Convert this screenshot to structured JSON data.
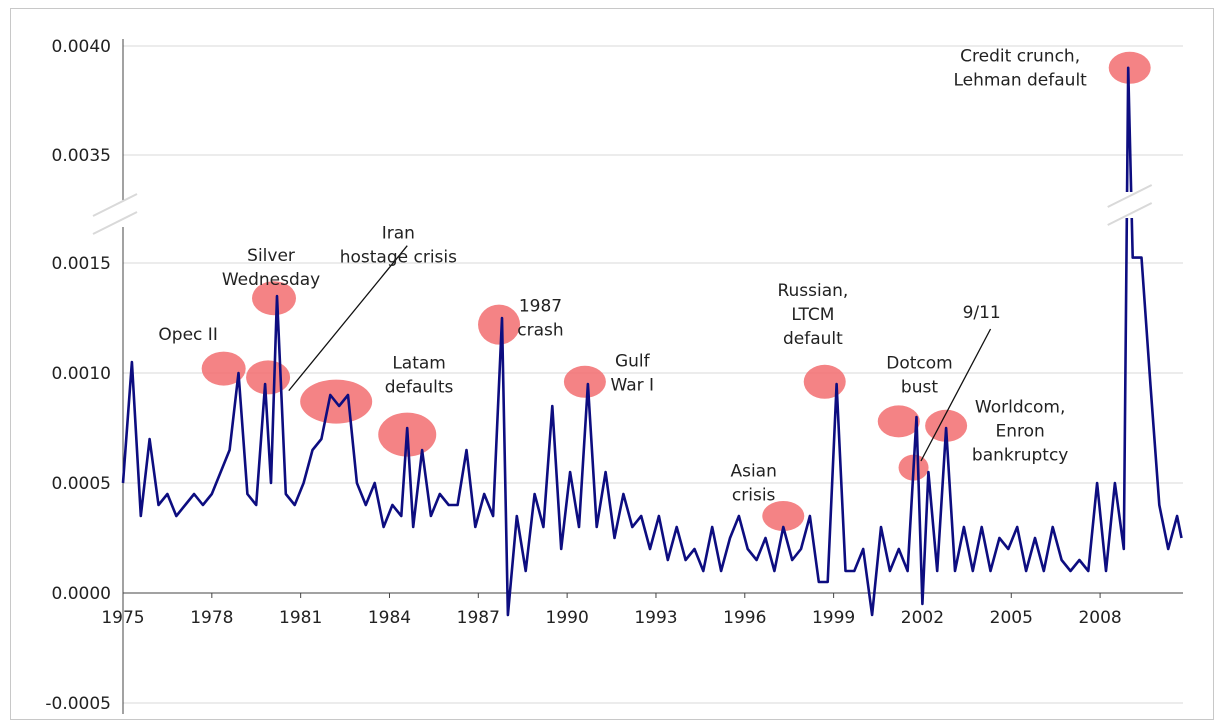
{
  "colors": {
    "line": "#0d0d80",
    "highlight": "#f26d70",
    "grid": "#d9d9d9",
    "axis": "#444444"
  },
  "chart_data": {
    "type": "line",
    "title": "",
    "xlabel": "",
    "ylabel": "",
    "broken_axis": true,
    "axis_break_between": [
      0.0015,
      0.0035
    ],
    "ylim": [
      -0.0005,
      0.004
    ],
    "xlim": [
      1975,
      2010.8
    ],
    "grid": "horizontal",
    "x_ticks": [
      "1975",
      "1978",
      "1981",
      "1984",
      "1987",
      "1990",
      "1993",
      "1996",
      "1999",
      "2002",
      "2005",
      "2008"
    ],
    "y_ticks": [
      "0.0040",
      "0.0035",
      "0.0015",
      "0.0010",
      "0.0005",
      "0.0000",
      "-0.0005"
    ],
    "series": [
      {
        "x": [
          1975.0,
          1975.3,
          1975.6,
          1975.9,
          1976.2,
          1976.5,
          1976.8,
          1977.1,
          1977.4,
          1977.7,
          1978.0,
          1978.3,
          1978.6,
          1978.9,
          1979.2,
          1979.5,
          1979.8,
          1980.0,
          1980.2,
          1980.5,
          1980.8,
          1981.1,
          1981.4,
          1981.7,
          1982.0,
          1982.3,
          1982.6,
          1982.9,
          1983.2,
          1983.5,
          1983.8,
          1984.1,
          1984.4,
          1984.6,
          1984.8,
          1985.1,
          1985.4,
          1985.7,
          1986.0,
          1986.3,
          1986.6,
          1986.9,
          1987.2,
          1987.5,
          1987.8,
          1988.0,
          1988.3,
          1988.6,
          1988.9,
          1989.2,
          1989.5,
          1989.8,
          1990.1,
          1990.4,
          1990.7,
          1991.0,
          1991.3,
          1991.6,
          1991.9,
          1992.2,
          1992.5,
          1992.8,
          1993.1,
          1993.4,
          1993.7,
          1994.0,
          1994.3,
          1994.6,
          1994.9,
          1995.2,
          1995.5,
          1995.8,
          1996.1,
          1996.4,
          1996.7,
          1997.0,
          1997.3,
          1997.6,
          1997.9,
          1998.2,
          1998.5,
          1998.8,
          1999.1,
          1999.4,
          1999.7,
          2000.0,
          2000.3,
          2000.6,
          2000.9,
          2001.2,
          2001.5,
          2001.8,
          2002.0,
          2002.2,
          2002.5,
          2002.8,
          2003.1,
          2003.4,
          2003.7,
          2004.0,
          2004.3,
          2004.6,
          2004.9,
          2005.2,
          2005.5,
          2005.8,
          2006.1,
          2006.4,
          2006.7,
          2007.0,
          2007.3,
          2007.6,
          2007.9,
          2008.2,
          2008.5,
          2008.8,
          2008.95,
          2009.1,
          2009.4,
          2009.7,
          2010.0,
          2010.3,
          2010.6,
          2010.75
        ],
        "y": [
          0.0005,
          0.00105,
          0.00035,
          0.0007,
          0.0004,
          0.00045,
          0.00035,
          0.0004,
          0.00045,
          0.0004,
          0.00045,
          0.00055,
          0.00065,
          0.001,
          0.00045,
          0.0004,
          0.00095,
          0.0005,
          0.00135,
          0.00045,
          0.0004,
          0.0005,
          0.00065,
          0.0007,
          0.0009,
          0.00085,
          0.0009,
          0.0005,
          0.0004,
          0.0005,
          0.0003,
          0.0004,
          0.00035,
          0.00075,
          0.0003,
          0.00065,
          0.00035,
          0.00045,
          0.0004,
          0.0004,
          0.00065,
          0.0003,
          0.00045,
          0.00035,
          0.00125,
          -0.0001,
          0.00035,
          0.0001,
          0.00045,
          0.0003,
          0.00085,
          0.0002,
          0.00055,
          0.0003,
          0.00095,
          0.0003,
          0.00055,
          0.00025,
          0.00045,
          0.0003,
          0.00035,
          0.0002,
          0.00035,
          0.00015,
          0.0003,
          0.00015,
          0.0002,
          0.0001,
          0.0003,
          0.0001,
          0.00025,
          0.00035,
          0.0002,
          0.00015,
          0.00025,
          0.0001,
          0.0003,
          0.00015,
          0.0002,
          0.00035,
          5e-05,
          5e-05,
          0.00095,
          0.0001,
          0.0001,
          0.0002,
          -0.0001,
          0.0003,
          0.0001,
          0.0002,
          0.0001,
          0.0008,
          -5e-05,
          0.00055,
          0.0001,
          0.00075,
          0.0001,
          0.0003,
          0.0001,
          0.0003,
          0.0001,
          0.00025,
          0.0002,
          0.0003,
          0.0001,
          0.00025,
          0.0001,
          0.0003,
          0.00015,
          0.0001,
          0.00015,
          0.0001,
          0.0005,
          0.0001,
          0.0005,
          0.0002,
          0.0039,
          0.0016,
          0.0016,
          0.00095,
          0.0004,
          0.0002,
          0.00035,
          0.00025
        ]
      }
    ],
    "highlights": [
      {
        "x": 1978.4,
        "y": 0.00102,
        "rx": 22,
        "ry": 17
      },
      {
        "x": 1980.1,
        "y": 0.00134,
        "rx": 22,
        "ry": 17
      },
      {
        "x": 1979.9,
        "y": 0.00098,
        "rx": 22,
        "ry": 17
      },
      {
        "x": 1982.2,
        "y": 0.00087,
        "rx": 36,
        "ry": 22
      },
      {
        "x": 1984.6,
        "y": 0.00072,
        "rx": 29,
        "ry": 22
      },
      {
        "x": 1987.7,
        "y": 0.00122,
        "rx": 21,
        "ry": 20
      },
      {
        "x": 1990.6,
        "y": 0.00096,
        "rx": 21,
        "ry": 16
      },
      {
        "x": 1997.3,
        "y": 0.00035,
        "rx": 21,
        "ry": 15
      },
      {
        "x": 1998.7,
        "y": 0.00096,
        "rx": 21,
        "ry": 17
      },
      {
        "x": 2001.2,
        "y": 0.00078,
        "rx": 21,
        "ry": 16
      },
      {
        "x": 2002.8,
        "y": 0.00076,
        "rx": 21,
        "ry": 16
      },
      {
        "x": 2001.7,
        "y": 0.00057,
        "rx": 15,
        "ry": 13
      },
      {
        "x": 2009.0,
        "y": 0.0039,
        "rx": 21,
        "ry": 16
      }
    ],
    "annotations": [
      {
        "lines": [
          "Opec II"
        ],
        "x": 1977.2,
        "y": 0.00115,
        "anchor": "middle"
      },
      {
        "lines": [
          "Silver",
          "Wednesday"
        ],
        "x": 1980.0,
        "y": 0.00154,
        "anchor": "middle"
      },
      {
        "lines": [
          "Iran",
          "hostage crisis"
        ],
        "x": 1984.3,
        "y": 0.00195,
        "anchor": "middle"
      },
      {
        "lines": [
          "Latam",
          "defaults"
        ],
        "x": 1985.0,
        "y": 0.00102,
        "anchor": "middle"
      },
      {
        "lines": [
          "1987",
          "crash"
        ],
        "x": 1989.1,
        "y": 0.00128,
        "anchor": "middle"
      },
      {
        "lines": [
          "Gulf",
          "War I"
        ],
        "x": 1992.2,
        "y": 0.00103,
        "anchor": "middle"
      },
      {
        "lines": [
          "Asian",
          "crisis"
        ],
        "x": 1996.3,
        "y": 0.00053,
        "anchor": "middle"
      },
      {
        "lines": [
          "Russian,",
          "LTCM",
          "default"
        ],
        "x": 1998.3,
        "y": 0.00135,
        "anchor": "middle"
      },
      {
        "lines": [
          "Dotcom",
          "bust"
        ],
        "x": 2001.9,
        "y": 0.00102,
        "anchor": "middle"
      },
      {
        "lines": [
          "9/11"
        ],
        "x": 2004.0,
        "y": 0.00125,
        "anchor": "middle"
      },
      {
        "lines": [
          "Worldcom,",
          "Enron",
          "bankruptcy"
        ],
        "x": 2005.3,
        "y": 0.00082,
        "anchor": "middle"
      },
      {
        "lines": [
          "Credit crunch,",
          "Lehman default"
        ],
        "x": 2005.3,
        "y": 0.00393,
        "anchor": "middle"
      }
    ],
    "leader_lines": [
      {
        "from": [
          1984.6,
          0.00182
        ],
        "to": [
          1980.6,
          0.00092
        ]
      },
      {
        "from": [
          2004.3,
          0.0012
        ],
        "to": [
          2001.95,
          0.0006
        ]
      }
    ]
  }
}
